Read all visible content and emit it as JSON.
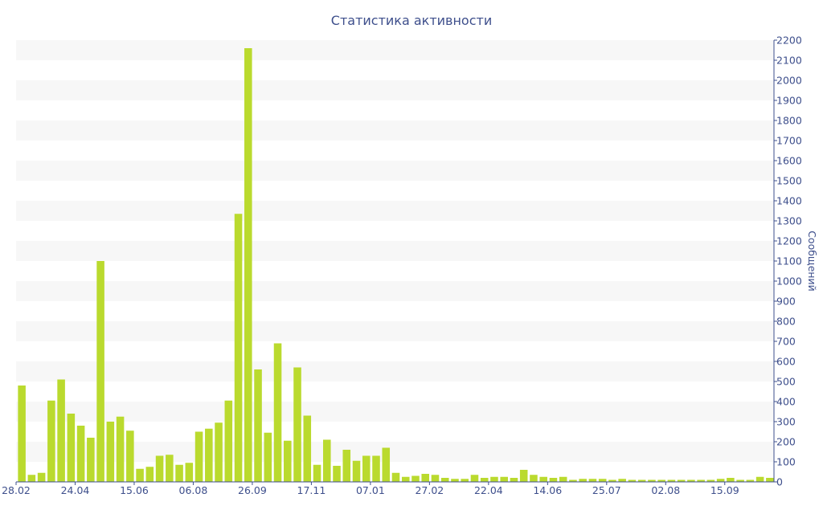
{
  "chart_data": {
    "type": "bar",
    "title": "Статистика активности",
    "xlabel": "",
    "ylabel": "Сообщений",
    "ylim": [
      0,
      2200
    ],
    "y_ticks": [
      0,
      100,
      200,
      300,
      400,
      500,
      600,
      700,
      800,
      900,
      1000,
      1100,
      1200,
      1300,
      1400,
      1500,
      1600,
      1700,
      1800,
      1900,
      2000,
      2100,
      2200
    ],
    "y_axis_position": "right",
    "grid": "alternating horizontal bands",
    "x_tick_labels": [
      {
        "label": "28.02",
        "index": 0
      },
      {
        "label": "24.04",
        "index": 6
      },
      {
        "label": "15.06",
        "index": 12
      },
      {
        "label": "06.08",
        "index": 18
      },
      {
        "label": "26.09",
        "index": 24
      },
      {
        "label": "17.11",
        "index": 30
      },
      {
        "label": "07.01",
        "index": 36
      },
      {
        "label": "27.02",
        "index": 42
      },
      {
        "label": "22.04",
        "index": 48
      },
      {
        "label": "14.06",
        "index": 54
      },
      {
        "label": "25.07",
        "index": 60
      },
      {
        "label": "02.08",
        "index": 66
      },
      {
        "label": "15.09",
        "index": 72
      }
    ],
    "values": [
      480,
      35,
      45,
      405,
      510,
      340,
      280,
      220,
      1100,
      300,
      325,
      255,
      65,
      75,
      130,
      135,
      85,
      95,
      250,
      265,
      295,
      405,
      1335,
      2160,
      560,
      245,
      690,
      205,
      570,
      330,
      85,
      210,
      80,
      160,
      105,
      130,
      130,
      170,
      45,
      25,
      30,
      40,
      35,
      20,
      15,
      15,
      35,
      20,
      25,
      25,
      20,
      60,
      35,
      25,
      20,
      25,
      10,
      15,
      15,
      15,
      10,
      15,
      10,
      10,
      10,
      10,
      10,
      10,
      10,
      10,
      10,
      15,
      20,
      10,
      10,
      25,
      20
    ],
    "bar_color": "#bada2e",
    "band_color": "#f7f7f7",
    "axis_color": "#3e4f8c"
  }
}
